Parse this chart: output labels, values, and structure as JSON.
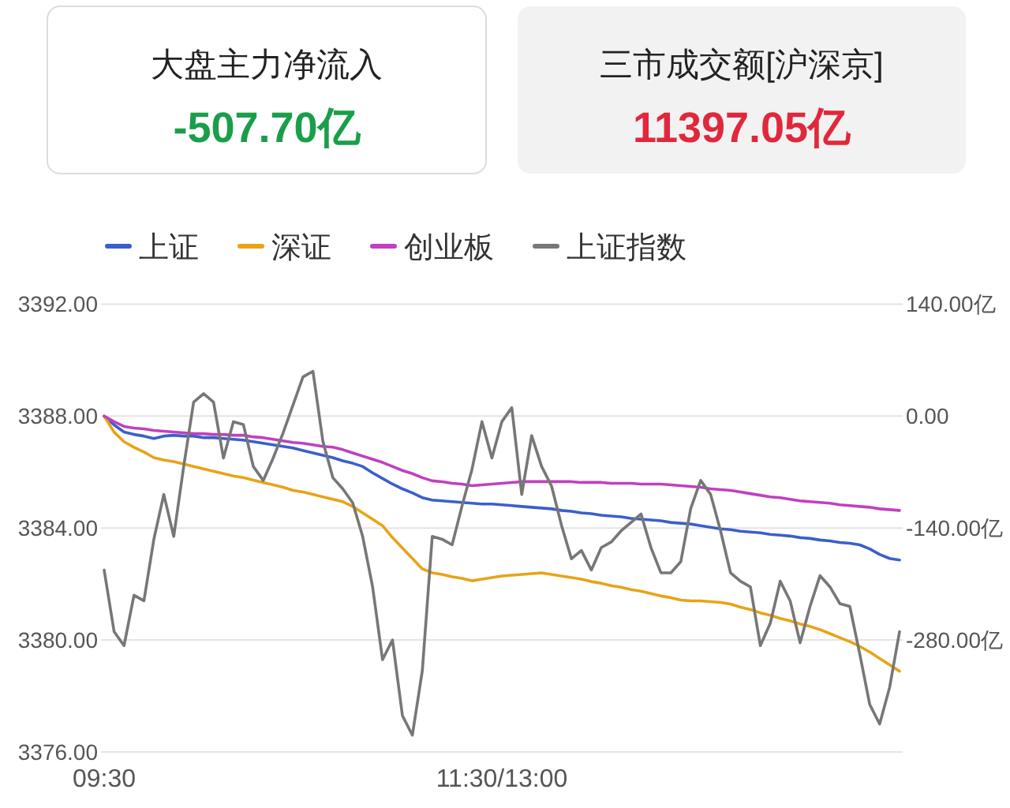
{
  "chart_data": {
    "type": "line",
    "annotations": [
      "大盘主力净流入",
      "-507.70亿",
      "三市成交额[沪深京]",
      "11397.05亿"
    ],
    "categories": [
      "09:30",
      null,
      null,
      null,
      null,
      null,
      null,
      null,
      null,
      null,
      null,
      null,
      null,
      null,
      null,
      null,
      null,
      null,
      null,
      null,
      null,
      null,
      null,
      null,
      null,
      null,
      null,
      null,
      null,
      null,
      null,
      null,
      null,
      null,
      null,
      null,
      null,
      null,
      null,
      null,
      "11:30/13:00",
      null,
      null,
      null,
      null,
      null,
      null,
      null,
      null,
      null,
      null,
      null,
      null,
      null,
      null,
      null,
      null,
      null,
      null,
      null,
      null,
      null,
      null,
      null,
      null,
      null,
      null,
      null,
      null,
      null,
      null,
      null,
      null,
      null,
      null,
      null,
      null,
      null,
      null,
      null,
      null
    ],
    "ylim": [
      3376,
      3392
    ],
    "yticks": [
      {
        "value": 3376,
        "label": "3376.00"
      },
      {
        "value": 3380,
        "label": "3380.00"
      },
      {
        "value": 3384,
        "label": "3384.00"
      },
      {
        "value": 3388,
        "label": "3388.00"
      },
      {
        "value": 3392,
        "label": "3392.00"
      }
    ],
    "y2lim": [
      -420,
      140
    ],
    "y2ticks": [
      {
        "value": -420,
        "label": null
      },
      {
        "value": -280,
        "label": "-280.00亿"
      },
      {
        "value": -140,
        "label": "-140.00亿"
      },
      {
        "value": 0,
        "label": "0.00"
      },
      {
        "value": 140,
        "label": "140.00亿"
      }
    ],
    "grid": "y",
    "legend": "top left",
    "marker": "none",
    "line_style": "solid",
    "series": [
      {
        "name": "上证",
        "color": "#3a5fcd",
        "axis": "y2",
        "values": [
          0,
          -11,
          -20,
          -23,
          -25,
          -28,
          -25,
          -24,
          -25,
          -25,
          -27,
          -27,
          -28,
          -29,
          -30,
          -32,
          -34,
          -36,
          -38,
          -40,
          -43,
          -46,
          -49,
          -52,
          -56,
          -59,
          -63,
          -71,
          -78,
          -85,
          -91,
          -96,
          -102,
          -105,
          -106,
          -107,
          -108,
          -109,
          -110,
          -110,
          -111,
          -112,
          -113,
          -114,
          -115,
          -116,
          -118,
          -119,
          -121,
          -122,
          -124,
          -125,
          -126,
          -128,
          -129,
          -130,
          -131,
          -133,
          -134,
          -135,
          -137,
          -139,
          -141,
          -142,
          -144,
          -145,
          -146,
          -148,
          -149,
          -150,
          -152,
          -153,
          -155,
          -156,
          -158,
          -159,
          -161,
          -166,
          -173,
          -178,
          -180
        ]
      },
      {
        "name": "深证",
        "color": "#e8a317",
        "axis": "y2",
        "values": [
          0,
          -20,
          -32,
          -39,
          -45,
          -52,
          -55,
          -57,
          -60,
          -63,
          -66,
          -69,
          -72,
          -75,
          -77,
          -80,
          -83,
          -86,
          -89,
          -93,
          -95,
          -98,
          -101,
          -104,
          -107,
          -113,
          -121,
          -129,
          -137,
          -152,
          -165,
          -178,
          -191,
          -196,
          -198,
          -201,
          -203,
          -206,
          -204,
          -202,
          -200,
          -199,
          -198,
          -197,
          -196,
          -198,
          -200,
          -202,
          -204,
          -207,
          -209,
          -212,
          -214,
          -217,
          -219,
          -222,
          -225,
          -227,
          -230,
          -231,
          -231,
          -232,
          -233,
          -235,
          -239,
          -242,
          -246,
          -249,
          -253,
          -256,
          -260,
          -263,
          -267,
          -272,
          -277,
          -282,
          -288,
          -295,
          -303,
          -311,
          -319
        ]
      },
      {
        "name": "创业板",
        "color": "#c040c0",
        "axis": "y2",
        "values": [
          0,
          -7,
          -13,
          -15,
          -16,
          -18,
          -19,
          -20,
          -21,
          -22,
          -22,
          -23,
          -23,
          -24,
          -24,
          -26,
          -27,
          -29,
          -31,
          -33,
          -34,
          -36,
          -38,
          -39,
          -42,
          -46,
          -50,
          -54,
          -58,
          -63,
          -68,
          -72,
          -77,
          -81,
          -82,
          -84,
          -85,
          -87,
          -86,
          -85,
          -84,
          -83,
          -82,
          -82,
          -82,
          -82,
          -82,
          -82,
          -83,
          -83,
          -83,
          -84,
          -84,
          -84,
          -85,
          -85,
          -85,
          -86,
          -87,
          -88,
          -89,
          -91,
          -92,
          -93,
          -95,
          -97,
          -99,
          -101,
          -102,
          -104,
          -106,
          -107,
          -108,
          -109,
          -111,
          -112,
          -113,
          -114,
          -116,
          -117,
          -118
        ]
      },
      {
        "name": "上证指数",
        "color": "#777777",
        "axis": "y",
        "values": [
          3382.5,
          3380.3,
          3379.8,
          3381.6,
          3381.4,
          3383.6,
          3385.2,
          3383.7,
          3386.2,
          3388.5,
          3388.8,
          3388.5,
          3386.5,
          3387.8,
          3387.7,
          3386.2,
          3385.7,
          3386.5,
          3387.4,
          3388.4,
          3389.4,
          3389.6,
          3387.1,
          3385.8,
          3385.4,
          3384.9,
          3383.7,
          3381.9,
          3379.3,
          3380.0,
          3377.3,
          3376.6,
          3378.9,
          3383.7,
          3383.6,
          3383.4,
          3384.8,
          3386.1,
          3387.8,
          3386.5,
          3387.8,
          3388.3,
          3385.2,
          3387.3,
          3386.2,
          3385.5,
          3384.1,
          3382.9,
          3383.2,
          3382.5,
          3383.3,
          3383.5,
          3383.9,
          3384.2,
          3384.5,
          3383.3,
          3382.4,
          3382.4,
          3382.8,
          3384.7,
          3385.7,
          3385.2,
          3383.9,
          3382.4,
          3382.1,
          3381.9,
          3379.8,
          3380.6,
          3382.1,
          3381.4,
          3379.9,
          3381.2,
          3382.3,
          3381.9,
          3381.3,
          3381.2,
          3379.5,
          3377.7,
          3377.0,
          3378.3,
          3380.3
        ]
      }
    ]
  }
}
